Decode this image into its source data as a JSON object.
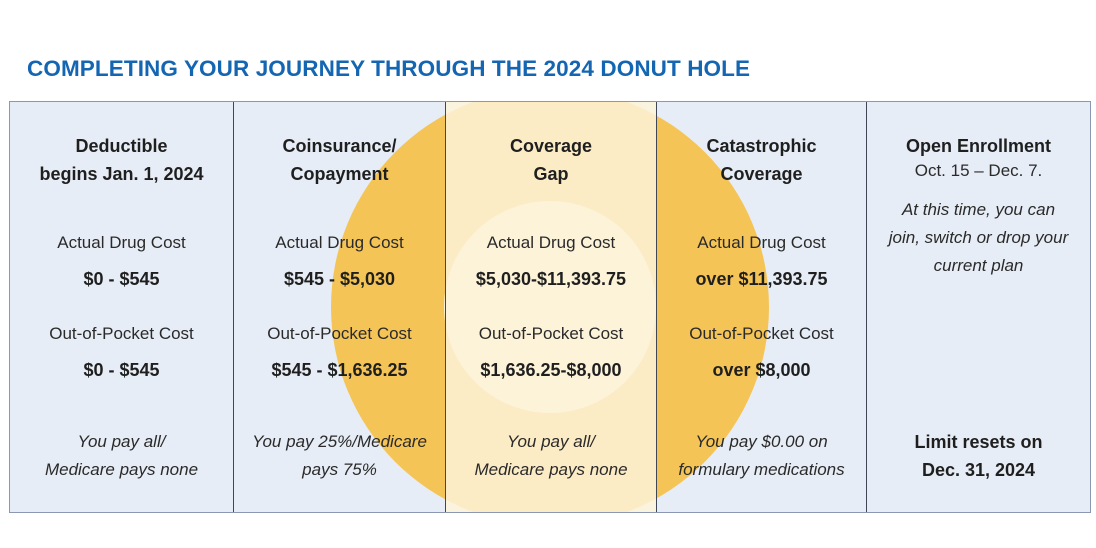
{
  "title": "COMPLETING YOUR JOURNEY THROUGH THE 2024 DONUT HOLE",
  "colors": {
    "title": "#1466b3",
    "panel": "#e7edf6",
    "donut": "#f5c456",
    "donut_hole": "#fdf3d9"
  },
  "phases": [
    {
      "heading": [
        "Deductible",
        "begins Jan. 1, 2024"
      ],
      "drug_cost_label": "Actual Drug Cost",
      "drug_cost_value": "$0 - $545",
      "oop_label": "Out-of-Pocket Cost",
      "oop_value": "$0 - $545",
      "note": [
        "You pay all/",
        "Medicare pays none"
      ]
    },
    {
      "heading": [
        "Coinsurance/",
        "Copayment"
      ],
      "drug_cost_label": "Actual Drug Cost",
      "drug_cost_value": "$545 - $5,030",
      "oop_label": "Out-of-Pocket Cost",
      "oop_value": "$545 - $1,636.25",
      "note": [
        "You pay 25%/Medicare",
        "pays 75%"
      ]
    },
    {
      "heading": [
        "Coverage",
        "Gap"
      ],
      "drug_cost_label": "Actual Drug Cost",
      "drug_cost_value": "$5,030-$11,393.75",
      "oop_label": "Out-of-Pocket Cost",
      "oop_value": "$1,636.25-$8,000",
      "note": [
        "You pay all/",
        "Medicare pays none"
      ]
    },
    {
      "heading": [
        "Catastrophic",
        "Coverage"
      ],
      "drug_cost_label": "Actual Drug Cost",
      "drug_cost_value": "over $11,393.75",
      "oop_label": "Out-of-Pocket Cost",
      "oop_value": "over $8,000",
      "note": [
        "You pay $0.00 on",
        "formulary medications"
      ]
    }
  ],
  "enrollment": {
    "heading": "Open Enrollment",
    "dates": "Oct. 15 – Dec. 7.",
    "text": [
      "At this time, you can",
      "join, switch or drop your",
      "current plan"
    ],
    "limit": [
      "Limit resets on",
      "Dec. 31, 2024"
    ]
  }
}
